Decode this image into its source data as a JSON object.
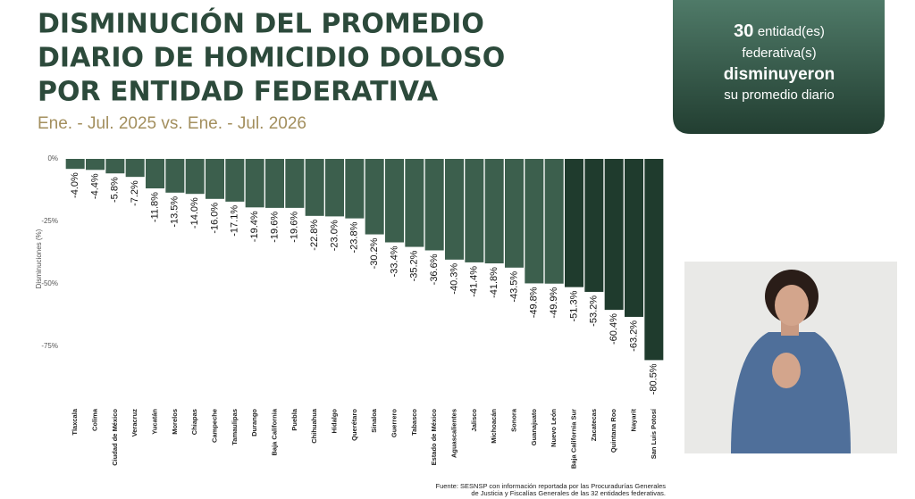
{
  "chart_data": {
    "type": "bar",
    "title_lines": [
      "DISMINUCIÓN DEL PROMEDIO",
      "DIARIO DE HOMICIDIO DOLOSO",
      "POR ENTIDAD FEDERATIVA"
    ],
    "subtitle": "Ene. - Jul. 2025 vs. Ene. - Jul. 2026",
    "y_label": "Disminuciones (%)",
    "categories": [
      "Tlaxcala",
      "Colima",
      "Ciudad de México",
      "Veracruz",
      "Yucatán",
      "Morelos",
      "Chiapas",
      "Campeche",
      "Tamaulipas",
      "Durango",
      "Baja California",
      "Puebla",
      "Chihuahua",
      "Hidalgo",
      "Querétaro",
      "Sinaloa",
      "Guerrero",
      "Tabasco",
      "Estado de México",
      "Aguascalientes",
      "Jalisco",
      "Michoacán",
      "Sonora",
      "Guanajuato",
      "Nuevo León",
      "Baja California Sur",
      "Zacatecas",
      "Quintana Roo",
      "Nayarit",
      "San Luis Potosí"
    ],
    "values": [
      -4.0,
      -4.4,
      -5.8,
      -7.2,
      -11.8,
      -13.5,
      -14.0,
      -16.0,
      -17.1,
      -19.4,
      -19.6,
      -19.6,
      -22.8,
      -23.0,
      -23.8,
      -30.2,
      -33.4,
      -35.2,
      -36.6,
      -40.3,
      -41.4,
      -41.8,
      -43.5,
      -49.8,
      -49.9,
      -51.3,
      -53.2,
      -60.4,
      -63.2,
      -80.5
    ],
    "value_labels": [
      "-4.0%",
      "-4.4%",
      "-5.8%",
      "-7.2%",
      "-11.8%",
      "-13.5%",
      "-14.0%",
      "-16.0%",
      "-17.1%",
      "-19.4%",
      "-19.6%",
      "-19.6%",
      "-22.8%",
      "-23.0%",
      "-23.8%",
      "-30.2%",
      "-33.4%",
      "-35.2%",
      "-36.6%",
      "-40.3%",
      "-41.4%",
      "-41.8%",
      "-43.5%",
      "-49.8%",
      "-49.9%",
      "-51.3%",
      "-53.2%",
      "-60.4%",
      "-63.2%",
      "-80.5%"
    ],
    "colors": [
      "#3c5f4d",
      "#3c5f4d",
      "#3c5f4d",
      "#3c5f4d",
      "#3c5f4d",
      "#3c5f4d",
      "#3c5f4d",
      "#3c5f4d",
      "#3c5f4d",
      "#3c5f4d",
      "#3c5f4d",
      "#3c5f4d",
      "#3c5f4d",
      "#3c5f4d",
      "#3c5f4d",
      "#3c5f4d",
      "#3c5f4d",
      "#3c5f4d",
      "#3c5f4d",
      "#3c5f4d",
      "#3c5f4d",
      "#3c5f4d",
      "#3c5f4d",
      "#3c5f4d",
      "#3c5f4d",
      "#1f3b2d",
      "#1f3b2d",
      "#1f3b2d",
      "#1f3b2d",
      "#1f3b2d"
    ],
    "ylim": [
      -85,
      0
    ],
    "yticks": [
      {
        "value": 0,
        "label": "0%"
      },
      {
        "value": -25,
        "label": "-25%"
      },
      {
        "value": -50,
        "label": "-50%"
      },
      {
        "value": -75,
        "label": "-75%"
      }
    ],
    "footnote_lines": [
      "Fuente: SESNSP con información reportada por las Procuradurías Generales",
      "de Justicia y Fiscalías Generales de las 32 entidades federativas."
    ]
  },
  "callout": {
    "count": 30,
    "text_1": "entidad(es)",
    "text_2": "federativa(s)",
    "highlight": "disminuyeron",
    "text_3": "su promedio diario"
  }
}
